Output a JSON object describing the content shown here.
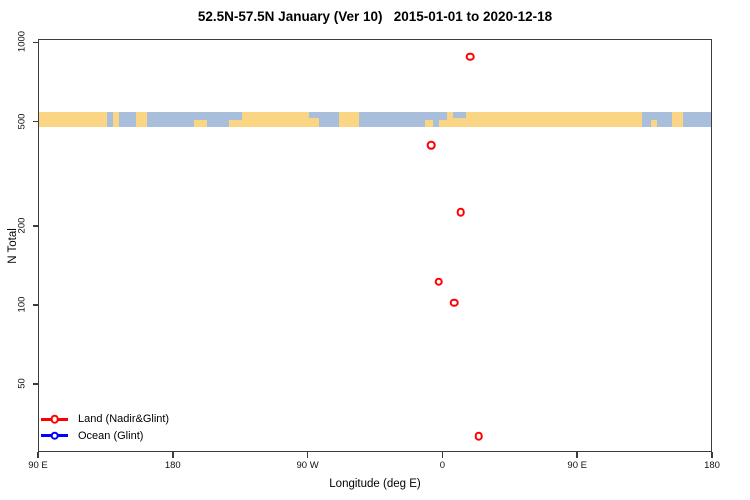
{
  "title": "52.5N-57.5N January (Ver 10)   2015-01-01 to 2020-12-18",
  "chart_data": {
    "type": "scatter",
    "title": "52.5N-57.5N January (Ver 10)   2015-01-01 to 2020-12-18",
    "xlabel": "Longitude (deg E)",
    "ylabel": "N Total",
    "grid": false,
    "x_axis": {
      "range_deg_e": [
        90,
        540
      ],
      "ticks": [
        {
          "lon": 90,
          "label": "90 E"
        },
        {
          "lon": 180,
          "label": "180"
        },
        {
          "lon": 270,
          "label": "90 W"
        },
        {
          "lon": 360,
          "label": "0"
        },
        {
          "lon": 450,
          "label": "90 E"
        },
        {
          "lon": 540,
          "label": "180"
        }
      ]
    },
    "y_axis": {
      "scale": "log",
      "range": [
        27.6,
        1031
      ],
      "ticks": [
        1000,
        500,
        200,
        100,
        50
      ]
    },
    "series": [
      {
        "name": "Land (Nadir&Glint)",
        "color": "#FF0000",
        "symbol": "open-circle",
        "points": [
          {
            "lon": 377.7,
            "n": 890
          },
          {
            "lon": 351.8,
            "n": 410
          },
          {
            "lon": 371.5,
            "n": 228
          },
          {
            "lon": 356.8,
            "n": 124
          },
          {
            "lon": 367.2,
            "n": 103
          },
          {
            "lon": 383.7,
            "n": 32
          }
        ]
      },
      {
        "name": "Ocean (Glint)",
        "color": "#0000FF",
        "symbol": "open-circle",
        "points": []
      }
    ],
    "map_band": {
      "value_range": [
        548,
        480
      ],
      "land_color": "#FAD584",
      "ocean_color": "#A9BEDB",
      "segments": [
        {
          "from": 90,
          "to": 135.5,
          "type": "land"
        },
        {
          "from": 135.5,
          "to": 139.5,
          "type": "ocean"
        },
        {
          "from": 139.5,
          "to": 143.5,
          "type": "land"
        },
        {
          "from": 143.5,
          "to": 155,
          "type": "ocean"
        },
        {
          "from": 155,
          "to": 162,
          "type": "land"
        },
        {
          "from": 162,
          "to": 193.5,
          "type": "ocean"
        },
        {
          "from": 193.5,
          "to": 202,
          "type": "ocean+land-bottom"
        },
        {
          "from": 202,
          "to": 217,
          "type": "ocean"
        },
        {
          "from": 217,
          "to": 225.5,
          "type": "ocean+land-bottom"
        },
        {
          "from": 225.5,
          "to": 270.5,
          "type": "land"
        },
        {
          "from": 270.5,
          "to": 277,
          "type": "land+ocean-top"
        },
        {
          "from": 277,
          "to": 290.5,
          "type": "ocean"
        },
        {
          "from": 290.5,
          "to": 303.5,
          "type": "land"
        },
        {
          "from": 303.5,
          "to": 347.5,
          "type": "ocean"
        },
        {
          "from": 347.5,
          "to": 353,
          "type": "ocean+land-bottom"
        },
        {
          "from": 353,
          "to": 357,
          "type": "ocean"
        },
        {
          "from": 357,
          "to": 362.5,
          "type": "ocean+land-bottom"
        },
        {
          "from": 362.5,
          "to": 366.5,
          "type": "land"
        },
        {
          "from": 366.5,
          "to": 375,
          "type": "land+ocean-top"
        },
        {
          "from": 375,
          "to": 492.5,
          "type": "land"
        },
        {
          "from": 492.5,
          "to": 498.5,
          "type": "ocean"
        },
        {
          "from": 498.5,
          "to": 502.5,
          "type": "ocean+land-bottom"
        },
        {
          "from": 502.5,
          "to": 512.5,
          "type": "ocean"
        },
        {
          "from": 512.5,
          "to": 520,
          "type": "land"
        },
        {
          "from": 520,
          "to": 540,
          "type": "ocean"
        }
      ]
    },
    "legend": {
      "position": "bottom-left",
      "items": [
        {
          "label": "Land (Nadir&Glint)",
          "color": "#FF0000"
        },
        {
          "label": "Ocean (Glint)",
          "color": "#0000FF"
        }
      ]
    }
  }
}
